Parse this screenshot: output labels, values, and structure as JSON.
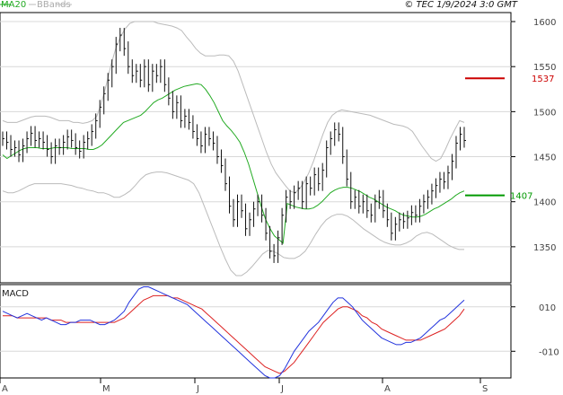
{
  "header": {
    "ma_label": "MA20",
    "bb_label": "BBands",
    "copyright": "© TEC 1/9/2024 3:0 GMT"
  },
  "colors": {
    "ma": "#22aa22",
    "bbands": "#bbbbbb",
    "price": "#111111",
    "resistance": "#cc0000",
    "support": "#009900",
    "macd": "#2233dd",
    "signal": "#dd2222",
    "grid": "#d8d8d8",
    "frame": "#000000"
  },
  "chart_data": {
    "type": "line",
    "title": "",
    "price_panel": {
      "ylim": [
        1310,
        1610
      ],
      "ticks": [
        1350,
        1400,
        1450,
        1500,
        1550,
        1600
      ],
      "resistance": {
        "value": 1537,
        "label": "1537"
      },
      "support": {
        "value": 1407,
        "label": "1407"
      },
      "close": [
        1470,
        1466,
        1458,
        1460,
        1452,
        1462,
        1470,
        1476,
        1468,
        1470,
        1466,
        1458,
        1450,
        1462,
        1460,
        1466,
        1472,
        1468,
        1460,
        1456,
        1466,
        1470,
        1478,
        1490,
        1505,
        1520,
        1535,
        1550,
        1575,
        1585,
        1570,
        1550,
        1540,
        1545,
        1535,
        1550,
        1530,
        1545,
        1540,
        1550,
        1530,
        1515,
        1500,
        1510,
        1490,
        1495,
        1488,
        1478,
        1470,
        1462,
        1475,
        1470,
        1465,
        1450,
        1440,
        1420,
        1395,
        1380,
        1400,
        1390,
        1370,
        1380,
        1392,
        1400,
        1385,
        1365,
        1345,
        1340,
        1360,
        1385,
        1405,
        1400,
        1410,
        1415,
        1400,
        1420,
        1415,
        1430,
        1420,
        1435,
        1460,
        1470,
        1480,
        1475,
        1450,
        1425,
        1400,
        1405,
        1395,
        1400,
        1390,
        1385,
        1400,
        1405,
        1390,
        1380,
        1365,
        1375,
        1380,
        1378,
        1382,
        1388,
        1385,
        1395,
        1400,
        1405,
        1412,
        1418,
        1425,
        1422,
        1432,
        1445,
        1465,
        1475,
        1468
      ],
      "ma20": [
        1452,
        1448,
        1451,
        1454,
        1457,
        1459,
        1460,
        1460,
        1460,
        1459,
        1459,
        1459,
        1460,
        1460,
        1460,
        1460,
        1459,
        1459,
        1459,
        1459,
        1458,
        1458,
        1460,
        1463,
        1468,
        1473,
        1478,
        1483,
        1488,
        1490,
        1492,
        1494,
        1496,
        1500,
        1505,
        1510,
        1513,
        1515,
        1518,
        1521,
        1524,
        1526,
        1528,
        1529,
        1530,
        1531,
        1530,
        1525,
        1518,
        1510,
        1500,
        1490,
        1484,
        1479,
        1473,
        1466,
        1455,
        1442,
        1426,
        1410,
        1394,
        1380,
        1370,
        1362,
        1358,
        1354,
        1398,
        1396,
        1394,
        1393,
        1392,
        1392,
        1393,
        1396,
        1400,
        1405,
        1410,
        1413,
        1415,
        1416,
        1416,
        1415,
        1413,
        1411,
        1408,
        1405,
        1403,
        1400,
        1397,
        1394,
        1392,
        1390,
        1387,
        1385,
        1384,
        1383,
        1383,
        1384,
        1386,
        1389,
        1392,
        1394,
        1397,
        1400,
        1403,
        1407,
        1410,
        1412
      ],
      "bb_upper": [
        1490,
        1488,
        1488,
        1488,
        1490,
        1492,
        1494,
        1495,
        1495,
        1495,
        1494,
        1492,
        1490,
        1490,
        1490,
        1488,
        1488,
        1487,
        1488,
        1490,
        1495,
        1510,
        1530,
        1552,
        1570,
        1583,
        1592,
        1598,
        1600,
        1600,
        1600,
        1600,
        1600,
        1598,
        1597,
        1596,
        1595,
        1593,
        1590,
        1583,
        1577,
        1570,
        1565,
        1562,
        1562,
        1562,
        1563,
        1563,
        1562,
        1556,
        1545,
        1530,
        1515,
        1500,
        1485,
        1470,
        1455,
        1442,
        1432,
        1425,
        1418,
        1412,
        1410,
        1414,
        1422,
        1432,
        1445,
        1460,
        1475,
        1488,
        1496,
        1500,
        1502,
        1501,
        1500,
        1499,
        1498,
        1497,
        1496,
        1494,
        1492,
        1490,
        1488,
        1486,
        1485,
        1484,
        1482,
        1478,
        1470,
        1462,
        1455,
        1448,
        1445,
        1448,
        1458,
        1470,
        1480,
        1490,
        1488
      ],
      "bb_lower": [
        1412,
        1410,
        1410,
        1412,
        1415,
        1418,
        1420,
        1420,
        1420,
        1420,
        1420,
        1420,
        1419,
        1418,
        1416,
        1415,
        1413,
        1412,
        1410,
        1410,
        1408,
        1405,
        1405,
        1408,
        1412,
        1418,
        1425,
        1430,
        1432,
        1433,
        1433,
        1432,
        1430,
        1428,
        1426,
        1424,
        1420,
        1410,
        1395,
        1380,
        1365,
        1350,
        1336,
        1324,
        1318,
        1318,
        1322,
        1328,
        1335,
        1342,
        1346,
        1345,
        1342,
        1338,
        1337,
        1337,
        1340,
        1345,
        1354,
        1364,
        1373,
        1380,
        1384,
        1386,
        1386,
        1384,
        1380,
        1375,
        1370,
        1366,
        1362,
        1358,
        1355,
        1353,
        1352,
        1352,
        1354,
        1357,
        1362,
        1365,
        1366,
        1364,
        1360,
        1356,
        1352,
        1349,
        1347,
        1347
      ]
    },
    "macd_panel": {
      "label": "MACD",
      "ylim": [
        -22,
        20
      ],
      "ticks": [
        10,
        -10
      ],
      "tick_labels": [
        "010",
        "-010"
      ],
      "macd": [
        8,
        7,
        6,
        5,
        6,
        7,
        6,
        5,
        4,
        5,
        4,
        3,
        2,
        2,
        3,
        3,
        4,
        4,
        4,
        3,
        2,
        2,
        3,
        4,
        6,
        8,
        12,
        15,
        18,
        19,
        19,
        18,
        17,
        16,
        15,
        14,
        13,
        12,
        11,
        9,
        7,
        5,
        3,
        1,
        -1,
        -3,
        -5,
        -7,
        -9,
        -11,
        -13,
        -15,
        -17,
        -19,
        -21,
        -22,
        -22,
        -21,
        -18,
        -14,
        -10,
        -7,
        -4,
        -1,
        1,
        3,
        6,
        9,
        12,
        14,
        14,
        12,
        10,
        7,
        4,
        2,
        0,
        -2,
        -4,
        -5,
        -6,
        -7,
        -7,
        -6,
        -6,
        -5,
        -4,
        -2,
        0,
        2,
        4,
        5,
        7,
        9,
        11,
        13
      ],
      "signal": [
        6,
        6,
        6,
        5,
        5,
        5,
        5,
        5,
        5,
        5,
        4,
        4,
        4,
        3,
        3,
        3,
        3,
        3,
        3,
        3,
        3,
        3,
        3,
        3,
        4,
        5,
        7,
        9,
        11,
        13,
        14,
        15,
        15,
        15,
        15,
        14,
        14,
        13,
        12,
        11,
        10,
        9,
        7,
        5,
        3,
        1,
        -1,
        -3,
        -5,
        -7,
        -9,
        -11,
        -13,
        -15,
        -17,
        -18,
        -19,
        -20,
        -19,
        -17,
        -15,
        -12,
        -9,
        -6,
        -3,
        0,
        3,
        5,
        7,
        9,
        10,
        10,
        9,
        8,
        6,
        5,
        3,
        2,
        0,
        -1,
        -2,
        -3,
        -4,
        -5,
        -5,
        -5,
        -5,
        -4,
        -3,
        -2,
        -1,
        0,
        2,
        4,
        6,
        9
      ]
    },
    "x_ticks": [
      {
        "label": "A",
        "pos": 0.0
      },
      {
        "label": "M",
        "pos": 0.196
      },
      {
        "label": "J",
        "pos": 0.381
      },
      {
        "label": "J",
        "pos": 0.547
      },
      {
        "label": "A",
        "pos": 0.749
      },
      {
        "label": "S",
        "pos": 0.941
      }
    ]
  }
}
